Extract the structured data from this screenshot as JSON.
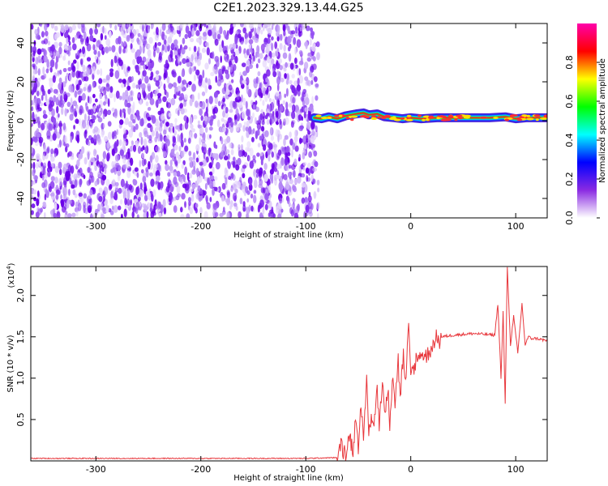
{
  "figure": {
    "title": "C2E1.2023.329.13.44.G25"
  },
  "chart_data": [
    {
      "type": "heatmap",
      "xlabel": "Height of straight line (km)",
      "ylabel": "Frequency (Hz)",
      "xlim": [
        -362,
        130
      ],
      "ylim": [
        -50,
        50
      ],
      "xticks": [
        -300,
        -200,
        -100,
        0,
        100
      ],
      "yticks": [
        -40,
        -20,
        0,
        20,
        40
      ],
      "grid": false,
      "noise_region": {
        "x_from": -362,
        "x_to": -88,
        "freq_range": [
          -50,
          50
        ]
      },
      "signal_ridge": [
        {
          "x": -92,
          "y": 1.5
        },
        {
          "x": -85,
          "y": 1.0
        },
        {
          "x": -78,
          "y": 2.0
        },
        {
          "x": -70,
          "y": 1.0
        },
        {
          "x": -62,
          "y": 2.5
        },
        {
          "x": -52,
          "y": 3.5
        },
        {
          "x": -45,
          "y": 4.0
        },
        {
          "x": -40,
          "y": 3.0
        },
        {
          "x": -32,
          "y": 3.5
        },
        {
          "x": -25,
          "y": 2.0
        },
        {
          "x": -15,
          "y": 1.5
        },
        {
          "x": -8,
          "y": 1.0
        },
        {
          "x": 0,
          "y": 1.5
        },
        {
          "x": 10,
          "y": 1.0
        },
        {
          "x": 25,
          "y": 1.5
        },
        {
          "x": 50,
          "y": 1.5
        },
        {
          "x": 75,
          "y": 1.5
        },
        {
          "x": 90,
          "y": 2.0
        },
        {
          "x": 100,
          "y": 1.0
        },
        {
          "x": 110,
          "y": 1.5
        },
        {
          "x": 130,
          "y": 1.5
        }
      ],
      "colorbar": {
        "label": "Normalized spectral amplitude",
        "range": [
          0,
          1
        ],
        "ticks": [
          0.0,
          0.2,
          0.4,
          0.6,
          0.8
        ],
        "tick_labels": [
          "0.0",
          "0.2",
          "0.4",
          "0.6",
          "0.8"
        ],
        "colors": [
          "#ffffff",
          "#8a2be2",
          "#0000ff",
          "#00ffff",
          "#00ff00",
          "#ffff00",
          "#ff0000",
          "#ff00aa"
        ]
      }
    },
    {
      "type": "line",
      "xlabel": "Height of straight line (km)",
      "ylabel": "SNR (10 * v/v)",
      "yscale_label": "(x10",
      "yscale_exp": "4",
      "yscale_close": ")",
      "xlim": [
        -362,
        130
      ],
      "ylim": [
        0,
        23500
      ],
      "xticks": [
        -300,
        -200,
        -100,
        0,
        100
      ],
      "yticks": [
        5000,
        10000,
        15000,
        20000
      ],
      "ytick_labels": [
        "0.5",
        "1.0",
        "1.5",
        "2.0"
      ],
      "grid": false,
      "series": [
        {
          "color": "#e8383d",
          "x": [
            -362,
            -100,
            -70,
            -66,
            -62,
            -58,
            -55,
            -52,
            -50,
            -48,
            -45,
            -42,
            -40,
            -37,
            -35,
            -32,
            -30,
            -27,
            -25,
            -22,
            -20,
            -17,
            -15,
            -12,
            -10,
            -7,
            -5,
            -2,
            0,
            5,
            10,
            15,
            20,
            25,
            30,
            40,
            50,
            60,
            70,
            80,
            83,
            86,
            88,
            90,
            92,
            95,
            98,
            102,
            106,
            109,
            112,
            115,
            120,
            130
          ],
          "y": [
            300,
            300,
            400,
            2300,
            600,
            3500,
            1000,
            5500,
            1500,
            7000,
            2000,
            10000,
            3500,
            5500,
            4000,
            9000,
            4500,
            10000,
            5500,
            8500,
            5000,
            11000,
            7000,
            12000,
            8000,
            12500,
            9000,
            16000,
            10500,
            12000,
            13000,
            12500,
            14000,
            14500,
            15000,
            15200,
            15300,
            15400,
            15300,
            15200,
            19000,
            10000,
            18000,
            7000,
            23500,
            14000,
            17500,
            13000,
            19000,
            14000,
            15000,
            14800,
            14800,
            14500
          ]
        }
      ]
    }
  ]
}
